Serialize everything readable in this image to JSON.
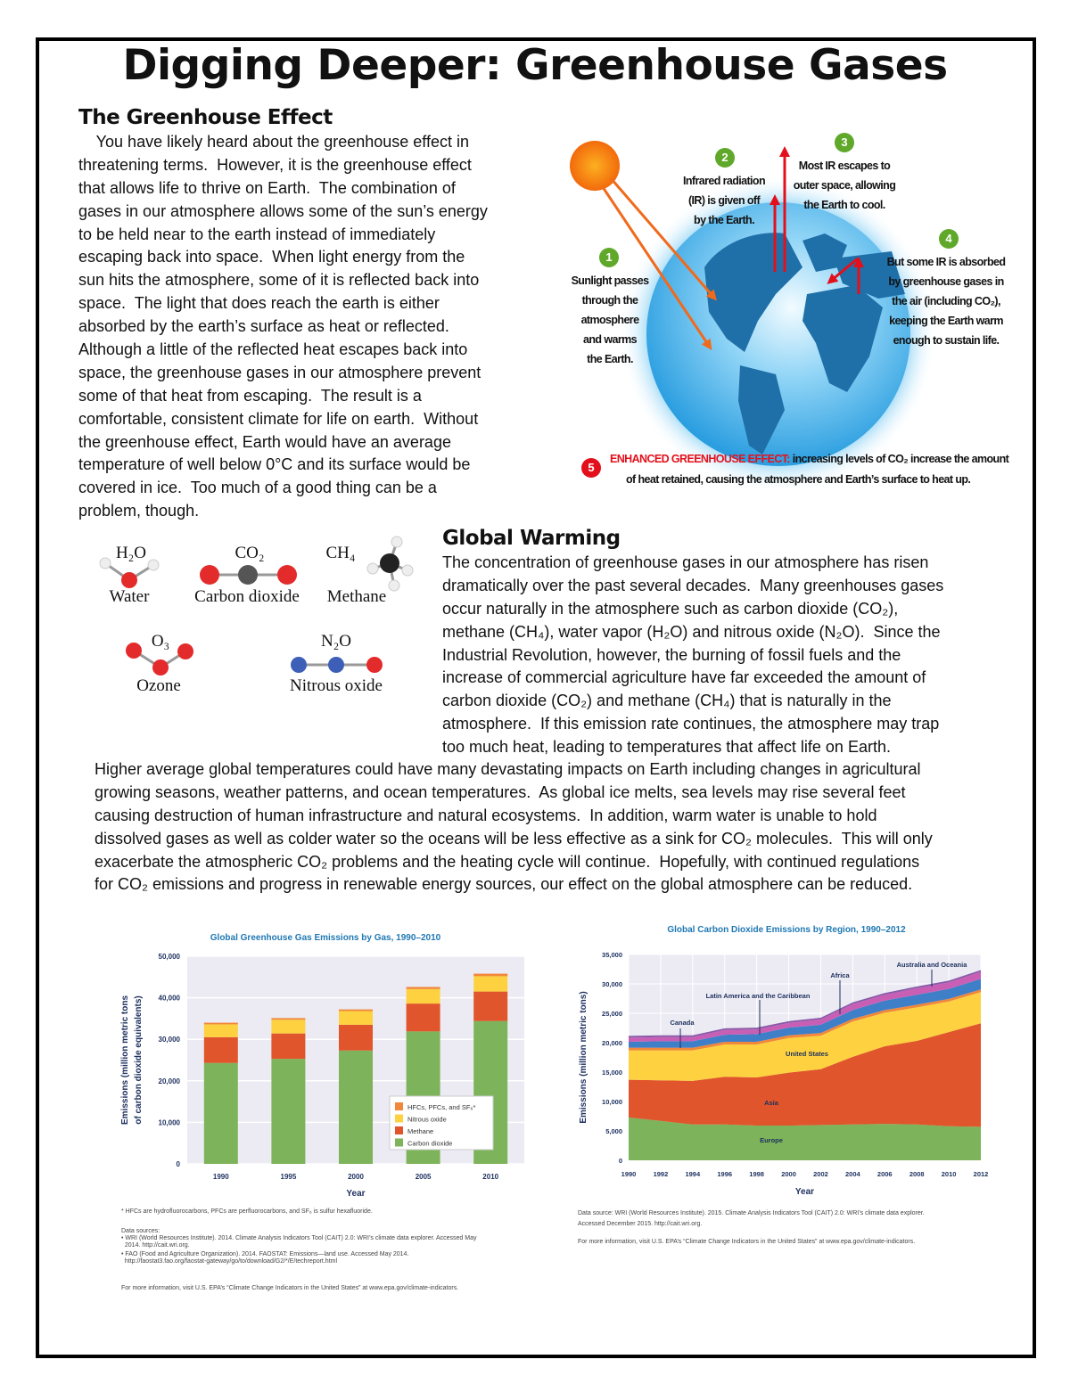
{
  "title": "Digging Deeper: Greenhouse Gases",
  "greenhouse_effect": {
    "heading": "The Greenhouse Effect",
    "lines": [
      "    You have likely heard about the greenhouse effect in",
      "threatening terms.  However, it is the greenhouse effect",
      "that allows life to thrive on Earth.  The combination of",
      "gases in our atmosphere allows some of the sun’s energy",
      "to be held near to the earth instead of immediately",
      "escaping back into space.  When light energy from the",
      "sun hits the atmosphere, some of it is reflected back into",
      "space.  The light that does reach the earth is either",
      "absorbed by the earth’s surface as heat or reflected.",
      "Although a little of the reflected heat escapes back into",
      "space, the greenhouse gases in our atmosphere prevent",
      "some of that heat from escaping.  The result is a",
      "comfortable, consistent climate for life on earth.  Without",
      "the greenhouse effect, Earth would have an average",
      "temperature of well below 0°C and its surface would be",
      "covered in ice.  Too much of a good thing can be a",
      "problem, though."
    ]
  },
  "diagram": {
    "steps": [
      {
        "num": "1",
        "text": [
          "Sunlight passes",
          "through the",
          "atmosphere",
          "and warms",
          "the Earth."
        ]
      },
      {
        "num": "2",
        "text": [
          "Infrared radiation",
          "(IR) is given off",
          "by the Earth."
        ]
      },
      {
        "num": "3",
        "text": [
          "Most IR escapes to",
          "outer space, allowing",
          "the Earth to cool."
        ]
      },
      {
        "num": "4",
        "text": [
          "But some IR is absorbed",
          "by greenhouse gases in",
          "the air (including CO₂),",
          "keeping the Earth warm",
          "enough to sustain life."
        ]
      }
    ],
    "enhanced": {
      "num": "5",
      "label": "ENHANCED GREENHOUSE EFFECT:",
      "line1": " increasing levels of CO₂ increase the amount",
      "line2": "of heat retained, causing the atmosphere and Earth’s surface to heat up."
    },
    "colors": {
      "sun": "#f7820f",
      "globe": "#4aaee8",
      "land": "#1f6fa8",
      "ray": "#f06a1c",
      "ir": "#e3101c",
      "step": "#5fa82a",
      "enhanced": "#e3101c"
    }
  },
  "molecules": [
    {
      "formula": "H₂O",
      "name": "Water"
    },
    {
      "formula": "CO₂",
      "name": "Carbon dioxide"
    },
    {
      "formula": "CH₄",
      "name": "Methane"
    },
    {
      "formula": "O₃",
      "name": "Ozone"
    },
    {
      "formula": "N₂O",
      "name": "Nitrous oxide"
    }
  ],
  "global_warming": {
    "heading": "Global Warming",
    "lines": [
      "The concentration of greenhouse gases in our atmosphere has risen",
      "dramatically over the past several decades.  Many greenhouses gases",
      "occur naturally in the atmosphere such as carbon dioxide (CO₂),",
      "methane (CH₄), water vapor (H₂O) and nitrous oxide (N₂O).  Since the",
      "Industrial Revolution, however, the burning of fossil fuels and the",
      "increase of commercial agriculture have far exceeded the amount of",
      "carbon dioxide (CO₂) and methane (CH₄) that is naturally in the",
      "atmosphere.  If this emission rate continues, the atmosphere may trap",
      "too much heat, leading to temperatures that affect life on Earth."
    ],
    "full_lines": [
      "Higher average global temperatures could have many devastating impacts on Earth including changes in agricultural",
      "growing seasons, weather patterns, and ocean temperatures.  As global ice melts, sea levels may rise several feet",
      "causing destruction of human infrastructure and natural ecosystems.  In addition, warm water is unable to hold",
      "dissolved gases as well as colder water so the oceans will be less effective as a sink for CO₂ molecules.  This will only",
      "exacerbate the atmospheric CO₂ problems and the heating cycle will continue.  Hopefully, with continued regulations",
      "for CO₂ emissions and progress in renewable energy sources, our effect on the global atmosphere can be reduced."
    ]
  },
  "chart_data": [
    {
      "type": "bar",
      "stacked": true,
      "title": "Global Greenhouse Gas Emissions by Gas, 1990–2010",
      "xlabel": "Year",
      "ylabel": [
        "Emissions (million metric tons",
        "of carbon dioxide equivalents)"
      ],
      "categories": [
        "1990",
        "1995",
        "2000",
        "2005",
        "2010"
      ],
      "ylim": [
        0,
        50000
      ],
      "yticks": [
        "0",
        "10,000",
        "20,000",
        "30,000",
        "40,000",
        "50,000"
      ],
      "grid": true,
      "legend": "bottom-right",
      "series": [
        {
          "name": "Carbon dioxide",
          "color": "#7db35a",
          "values": [
            24300,
            25300,
            27300,
            31900,
            34400
          ]
        },
        {
          "name": "Methane",
          "color": "#e0552b",
          "values": [
            6200,
            6100,
            6200,
            6700,
            7100
          ]
        },
        {
          "name": "Nitrous oxide",
          "color": "#fdd13f",
          "values": [
            3100,
            3300,
            3300,
            3500,
            3700
          ]
        },
        {
          "name": "HFCs, PFCs, and SF₆*",
          "color": "#f1873a",
          "values": [
            400,
            400,
            400,
            500,
            600
          ]
        }
      ],
      "legend_order": [
        "HFCs, PFCs, and SF₆*",
        "Nitrous oxide",
        "Methane",
        "Carbon dioxide"
      ],
      "footnotes": [
        "* HFCs are hydrofluorocarbons, PFCs are perfluorocarbons, and SF₆ is sulfur hexafluoride.",
        "Data sources:",
        "• WRI (World Resources Institute). 2014. Climate Analysis Indicators Tool (CAIT) 2.0: WRI’s climate data explorer. Accessed May",
        "  2014. http://cait.wri.org.",
        "• FAO (Food and Agriculture Organization). 2014. FAOSTAT: Emissions—land use. Accessed May 2014.",
        "  http://faostat3.fao.org/faostat-gateway/go/to/download/G2/*/E/techreport.html",
        "For more information, visit U.S. EPA’s “Climate Change Indicators in the United States” at www.epa.gov/climate-indicators."
      ]
    },
    {
      "type": "area",
      "stacked": true,
      "title": "Global Carbon Dioxide Emissions by Region, 1990–2012",
      "xlabel": "Year",
      "ylabel": "Emissions (million metric tons)",
      "x": [
        1990,
        1992,
        1994,
        1996,
        1998,
        2000,
        2002,
        2004,
        2006,
        2008,
        2010,
        2012
      ],
      "xticks": [
        "1990",
        "1992",
        "1994",
        "1996",
        "1998",
        "2000",
        "2002",
        "2004",
        "2006",
        "2008",
        "2010",
        "2012"
      ],
      "ylim": [
        0,
        35000
      ],
      "yticks": [
        "0",
        "5,000",
        "10,000",
        "15,000",
        "20,000",
        "25,000",
        "30,000",
        "35,000"
      ],
      "grid": true,
      "series": [
        {
          "name": "Europe",
          "color": "#7db35a",
          "values": [
            7300,
            6700,
            6100,
            6100,
            5900,
            5900,
            6000,
            6100,
            6200,
            6100,
            5800,
            5700
          ]
        },
        {
          "name": "Asia",
          "color": "#e0552b",
          "values": [
            6400,
            6900,
            7400,
            8100,
            8200,
            9000,
            9500,
            11500,
            13200,
            14200,
            16000,
            17600
          ]
        },
        {
          "name": "United States",
          "color": "#fdd13f",
          "values": [
            5000,
            5100,
            5200,
            5500,
            5600,
            5900,
            5700,
            6000,
            5700,
            5700,
            5200,
            5300
          ]
        },
        {
          "name": "Canada",
          "color": "#f1873a",
          "values": [
            450,
            450,
            450,
            450,
            450,
            450,
            450,
            450,
            450,
            450,
            450,
            450
          ]
        },
        {
          "name": "Latin America and the Caribbean",
          "color": "#3f7fc8",
          "values": [
            1000,
            1100,
            1100,
            1200,
            1300,
            1300,
            1400,
            1500,
            1600,
            1700,
            1700,
            1800
          ]
        },
        {
          "name": "Africa",
          "color": "#c85fb5",
          "values": [
            700,
            700,
            700,
            800,
            800,
            800,
            900,
            1000,
            1000,
            1100,
            1100,
            1200
          ]
        },
        {
          "name": "Australia and Oceania",
          "color": "#8a5aa8",
          "values": [
            300,
            300,
            300,
            300,
            300,
            300,
            300,
            300,
            300,
            300,
            300,
            300
          ]
        }
      ],
      "footnotes": [
        "Data source: WRI (World Resources Institute). 2015. Climate Analysis Indicators Tool (CAIT) 2.0: WRI’s climate data explorer.",
        "Accessed December 2015. http://cait.wri.org.",
        "For more information, visit U.S. EPA’s “Climate Change Indicators in the United States” at www.epa.gov/climate-indicators."
      ]
    }
  ]
}
